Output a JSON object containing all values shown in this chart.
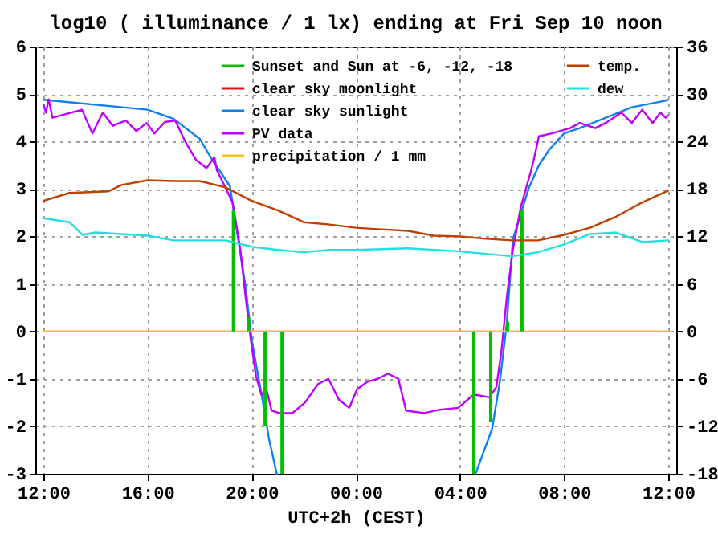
{
  "chart_data": {
    "type": "line",
    "title": "log10 ( illuminance / 1 lx) ending at Fri Sep 10 noon",
    "xlabel": "UTC+2h (CEST)",
    "xlim": [
      "--09-09T12:00",
      "--09-10T12:00"
    ],
    "xticks": [
      {
        "value": "--09-09T12:00",
        "label": "12:00"
      },
      {
        "value": "--09-09T16:00",
        "label": "16:00"
      },
      {
        "value": "--09-09T20:00",
        "label": "20:00"
      },
      {
        "value": "--09-10T00:00",
        "label": "00:00"
      },
      {
        "value": "--09-10T04:00",
        "label": "04:00"
      },
      {
        "value": "--09-10T08:00",
        "label": "08:00"
      },
      {
        "value": "--09-10T12:00",
        "label": "12:00"
      }
    ],
    "ylim": [
      -3,
      6
    ],
    "yticks": [
      -3,
      -2,
      -1,
      0,
      1,
      2,
      3,
      4,
      5,
      6
    ],
    "y2lim": [
      -18,
      36
    ],
    "y2ticks": [
      -18,
      -12,
      -6,
      0,
      6,
      12,
      18,
      24,
      30,
      36
    ],
    "grid": true,
    "legend": "top",
    "series": [
      {
        "name": "Sunset and Sun at -6, -12, -18",
        "type": "bar",
        "color": "#00c000",
        "x": [
          "--09-09T19:18",
          "--09-09T19:53",
          "--09-09T20:31",
          "--09-09T21:10",
          "--09-10T04:32",
          "--09-10T05:11",
          "--09-10T05:50",
          "--09-10T06:23"
        ],
        "values": [
          2.55,
          0.3,
          -2.0,
          -3,
          -3,
          -1.9,
          0.2,
          2.55
        ]
      },
      {
        "name": "clear sky moonlight",
        "color": "#e01010"
      },
      {
        "name": "clear sky sunlight",
        "color": "#1080f0",
        "x": [
          "--09-09T12:00",
          "--09-09T16:00",
          "--09-09T17:00",
          "--09-09T18:00",
          "--09-09T18:30",
          "--09-09T19:10",
          "--09-09T19:46",
          "--09-09T20:00",
          "--09-09T20:28",
          "--09-09T20:40",
          "--09-09T20:58",
          "--09-10T00:00",
          "--09-10T04:36",
          "--09-10T05:14",
          "--09-10T05:32",
          "--09-10T05:48",
          "--09-10T06:02",
          "--09-10T06:38",
          "--09-10T07:02",
          "--09-10T07:26",
          "--09-10T08:00",
          "--09-10T08:36",
          "--09-10T10:36",
          "--09-10T11:54",
          "--09-10T12:00"
        ],
        "values": [
          4.88,
          4.67,
          4.48,
          4.06,
          3.6,
          3.06,
          0.94,
          -0.17,
          -1.6,
          -2.27,
          -3,
          null,
          -3,
          -2.06,
          -1.06,
          0.17,
          1.94,
          3.0,
          3.5,
          3.83,
          4.17,
          4.28,
          4.72,
          4.86,
          4.88
        ]
      },
      {
        "name": "PV data",
        "color": "#c000ff",
        "x": [
          "--09-09T12:00",
          "--09-09T12:06",
          "--09-09T12:12",
          "--09-09T12:21",
          "--09-09T13:29",
          "--09-09T13:53",
          "--09-09T14:17",
          "--09-09T14:40",
          "--09-09T15:10",
          "--09-09T15:34",
          "--09-09T15:58",
          "--09-09T16:16",
          "--09-09T16:40",
          "--09-09T17:04",
          "--09-09T17:28",
          "--09-09T17:52",
          "--09-09T18:16",
          "--09-09T18:34",
          "--09-09T18:40",
          "--09-09T18:52",
          "--09-09T19:16",
          "--09-09T19:34",
          "--09-09T19:46",
          "--09-09T19:58",
          "--09-09T20:10",
          "--09-09T20:22",
          "--09-09T20:34",
          "--09-09T20:46",
          "--09-09T21:04",
          "--09-09T21:34",
          "--09-09T22:03",
          "--09-09T22:33",
          "--09-09T22:57",
          "--09-09T23:21",
          "--09-09T23:45",
          "--09-10T00:03",
          "--09-10T00:27",
          "--09-10T00:51",
          "--09-10T01:14",
          "--09-10T01:38",
          "--09-10T01:56",
          "--09-10T02:38",
          "--09-10T03:14",
          "--09-10T03:56",
          "--09-10T04:32",
          "--09-10T05:08",
          "--09-10T05:24",
          "--09-10T05:36",
          "--09-10T05:48",
          "--09-10T06:02",
          "--09-10T06:20",
          "--09-10T06:44",
          "--09-10T06:50",
          "--09-10T07:02",
          "--09-10T07:32",
          "--09-10T08:14",
          "--09-10T08:36",
          "--09-10T09:12",
          "--09-10T09:36",
          "--09-10T10:12",
          "--09-10T10:36",
          "--09-10T11:00",
          "--09-10T11:24",
          "--09-10T11:42",
          "--09-10T11:54",
          "--09-10T12:00"
        ],
        "values": [
          4.78,
          4.61,
          4.89,
          4.5,
          4.67,
          4.17,
          4.61,
          4.33,
          4.44,
          4.22,
          4.39,
          4.17,
          4.41,
          4.44,
          3.98,
          3.61,
          3.44,
          3.67,
          3.39,
          3.17,
          2.72,
          1.72,
          0.73,
          -0.17,
          -0.94,
          -1.33,
          -1.22,
          -1.67,
          -1.72,
          -1.72,
          -1.5,
          -1.11,
          -1.0,
          -1.44,
          -1.61,
          -1.22,
          -1.06,
          -1.0,
          -0.89,
          -1.0,
          -1.67,
          -1.72,
          -1.65,
          -1.61,
          -1.33,
          -1.39,
          -1.17,
          -0.39,
          0.72,
          1.72,
          2.61,
          3.39,
          3.61,
          4.11,
          4.17,
          4.28,
          4.39,
          4.28,
          4.39,
          4.61,
          4.39,
          4.67,
          4.39,
          4.61,
          4.5,
          4.55
        ]
      },
      {
        "name": "precipitation / 1 mm",
        "color": "#ffc020",
        "x": [
          "--09-09T12:00",
          "--09-10T12:00"
        ],
        "values": [
          0,
          0
        ]
      },
      {
        "name": "temp.",
        "axis": "y2",
        "color": "#c04000",
        "x": [
          "--09-09T12:00",
          "--09-09T13:00",
          "--09-09T14:30",
          "--09-09T15:00",
          "--09-09T16:00",
          "--09-09T17:00",
          "--09-09T18:00",
          "--09-09T19:00",
          "--09-09T20:00",
          "--09-09T21:00",
          "--09-09T22:00",
          "--09-09T23:00",
          "--09-10T00:00",
          "--09-10T01:00",
          "--09-10T02:00",
          "--09-10T03:00",
          "--09-10T04:00",
          "--09-10T05:00",
          "--09-10T06:00",
          "--09-10T07:00",
          "--09-10T08:00",
          "--09-10T09:00",
          "--09-10T10:00",
          "--09-10T11:00",
          "--09-10T12:00"
        ],
        "values": [
          16.5,
          17.5,
          17.7,
          18.5,
          19.1,
          19.0,
          19.0,
          18.2,
          16.5,
          15.3,
          13.8,
          13.5,
          13.1,
          12.9,
          12.7,
          12.1,
          12.0,
          11.7,
          11.5,
          11.5,
          12.2,
          13.1,
          14.5,
          16.3,
          17.8
        ]
      },
      {
        "name": "dew",
        "axis": "y2",
        "color": "#20e0e0",
        "x": [
          "--09-09T12:00",
          "--09-09T13:00",
          "--09-09T13:30",
          "--09-09T14:00",
          "--09-09T16:00",
          "--09-09T17:00",
          "--09-09T19:00",
          "--09-09T20:00",
          "--09-09T21:00",
          "--09-09T22:00",
          "--09-09T23:00",
          "--09-10T00:00",
          "--09-10T02:00",
          "--09-10T04:00",
          "--09-10T06:00",
          "--09-10T07:00",
          "--09-10T08:00",
          "--09-10T09:00",
          "--09-10T10:00",
          "--09-10T11:00",
          "--09-10T12:00"
        ],
        "values": [
          14.3,
          13.8,
          12.2,
          12.5,
          12.1,
          11.5,
          11.5,
          10.7,
          10.3,
          10.0,
          10.3,
          10.3,
          10.5,
          10.1,
          9.5,
          10.0,
          11.0,
          12.3,
          12.5,
          11.3,
          11.5
        ]
      }
    ]
  }
}
